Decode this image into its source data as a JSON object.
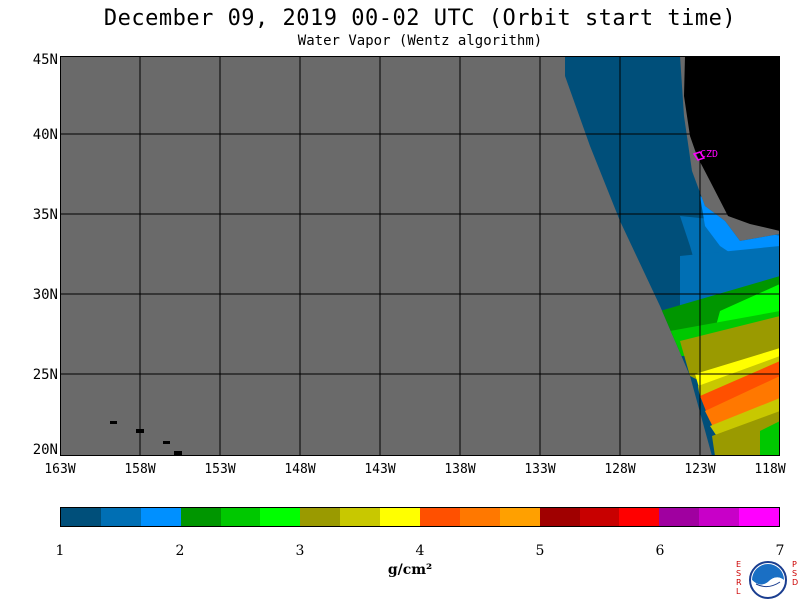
{
  "header": {
    "title": "December 09, 2019  00-02 UTC  (Orbit start time)",
    "subtitle": "Water Vapor (Wentz algorithm)"
  },
  "map": {
    "latitude_labels": [
      "45N",
      "40N",
      "35N",
      "30N",
      "25N",
      "20N"
    ],
    "longitude_labels": [
      "163W",
      "158W",
      "153W",
      "148W",
      "143W",
      "138W",
      "133W",
      "128W",
      "123W",
      "118W"
    ],
    "station_label": "CZD",
    "no_data_color": "#6a6a6a",
    "land_color": "#000000",
    "grid_color": "#000000",
    "station_color": "#ff00ff"
  },
  "colorbar": {
    "tick_labels": [
      "1",
      "2",
      "3",
      "4",
      "5",
      "6",
      "7"
    ],
    "unit_label": "g/cm²",
    "colors": [
      "#004f7a",
      "#006fb4",
      "#0090ff",
      "#009600",
      "#00c800",
      "#00ff00",
      "#9a9a00",
      "#c8c800",
      "#ffff00",
      "#ff5000",
      "#ff7800",
      "#ffa000",
      "#a00000",
      "#c80000",
      "#ff0000",
      "#a000a0",
      "#c800c8",
      "#ff00ff"
    ]
  },
  "logo": {
    "left_letters": "ESRL",
    "right_letters": "PSD",
    "center_text": "NOAA"
  }
}
